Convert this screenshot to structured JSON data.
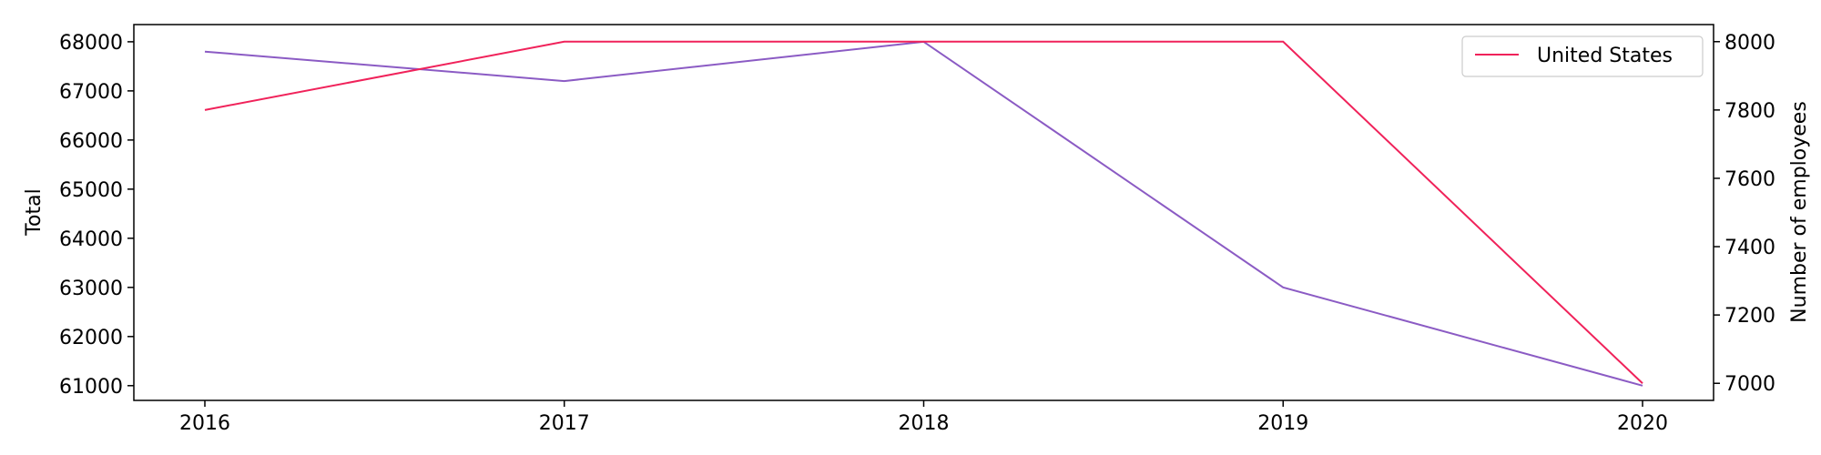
{
  "chart_data": {
    "type": "line",
    "title": "",
    "x": [
      2016,
      2017,
      2018,
      2019,
      2020
    ],
    "xlabel": "",
    "left_axis": {
      "label": "Total",
      "ylim": [
        60700,
        68350
      ],
      "ticks": [
        61000,
        62000,
        63000,
        64000,
        65000,
        66000,
        67000,
        68000
      ]
    },
    "right_axis": {
      "label": "Number of employees",
      "ylim": [
        6950,
        8050
      ],
      "ticks": [
        7000,
        7200,
        7400,
        7600,
        7800,
        8000
      ]
    },
    "series": [
      {
        "name": "",
        "axis": "left",
        "color": "#8B5BC4",
        "values": [
          67800,
          67200,
          68000,
          63000,
          61000
        ]
      },
      {
        "name": "United States",
        "axis": "right",
        "color": "#F0225A",
        "values": [
          7800,
          8000,
          8000,
          8000,
          7000
        ]
      }
    ],
    "legend": {
      "placement": "top-right",
      "entries": [
        "United States"
      ]
    },
    "grid": false
  }
}
